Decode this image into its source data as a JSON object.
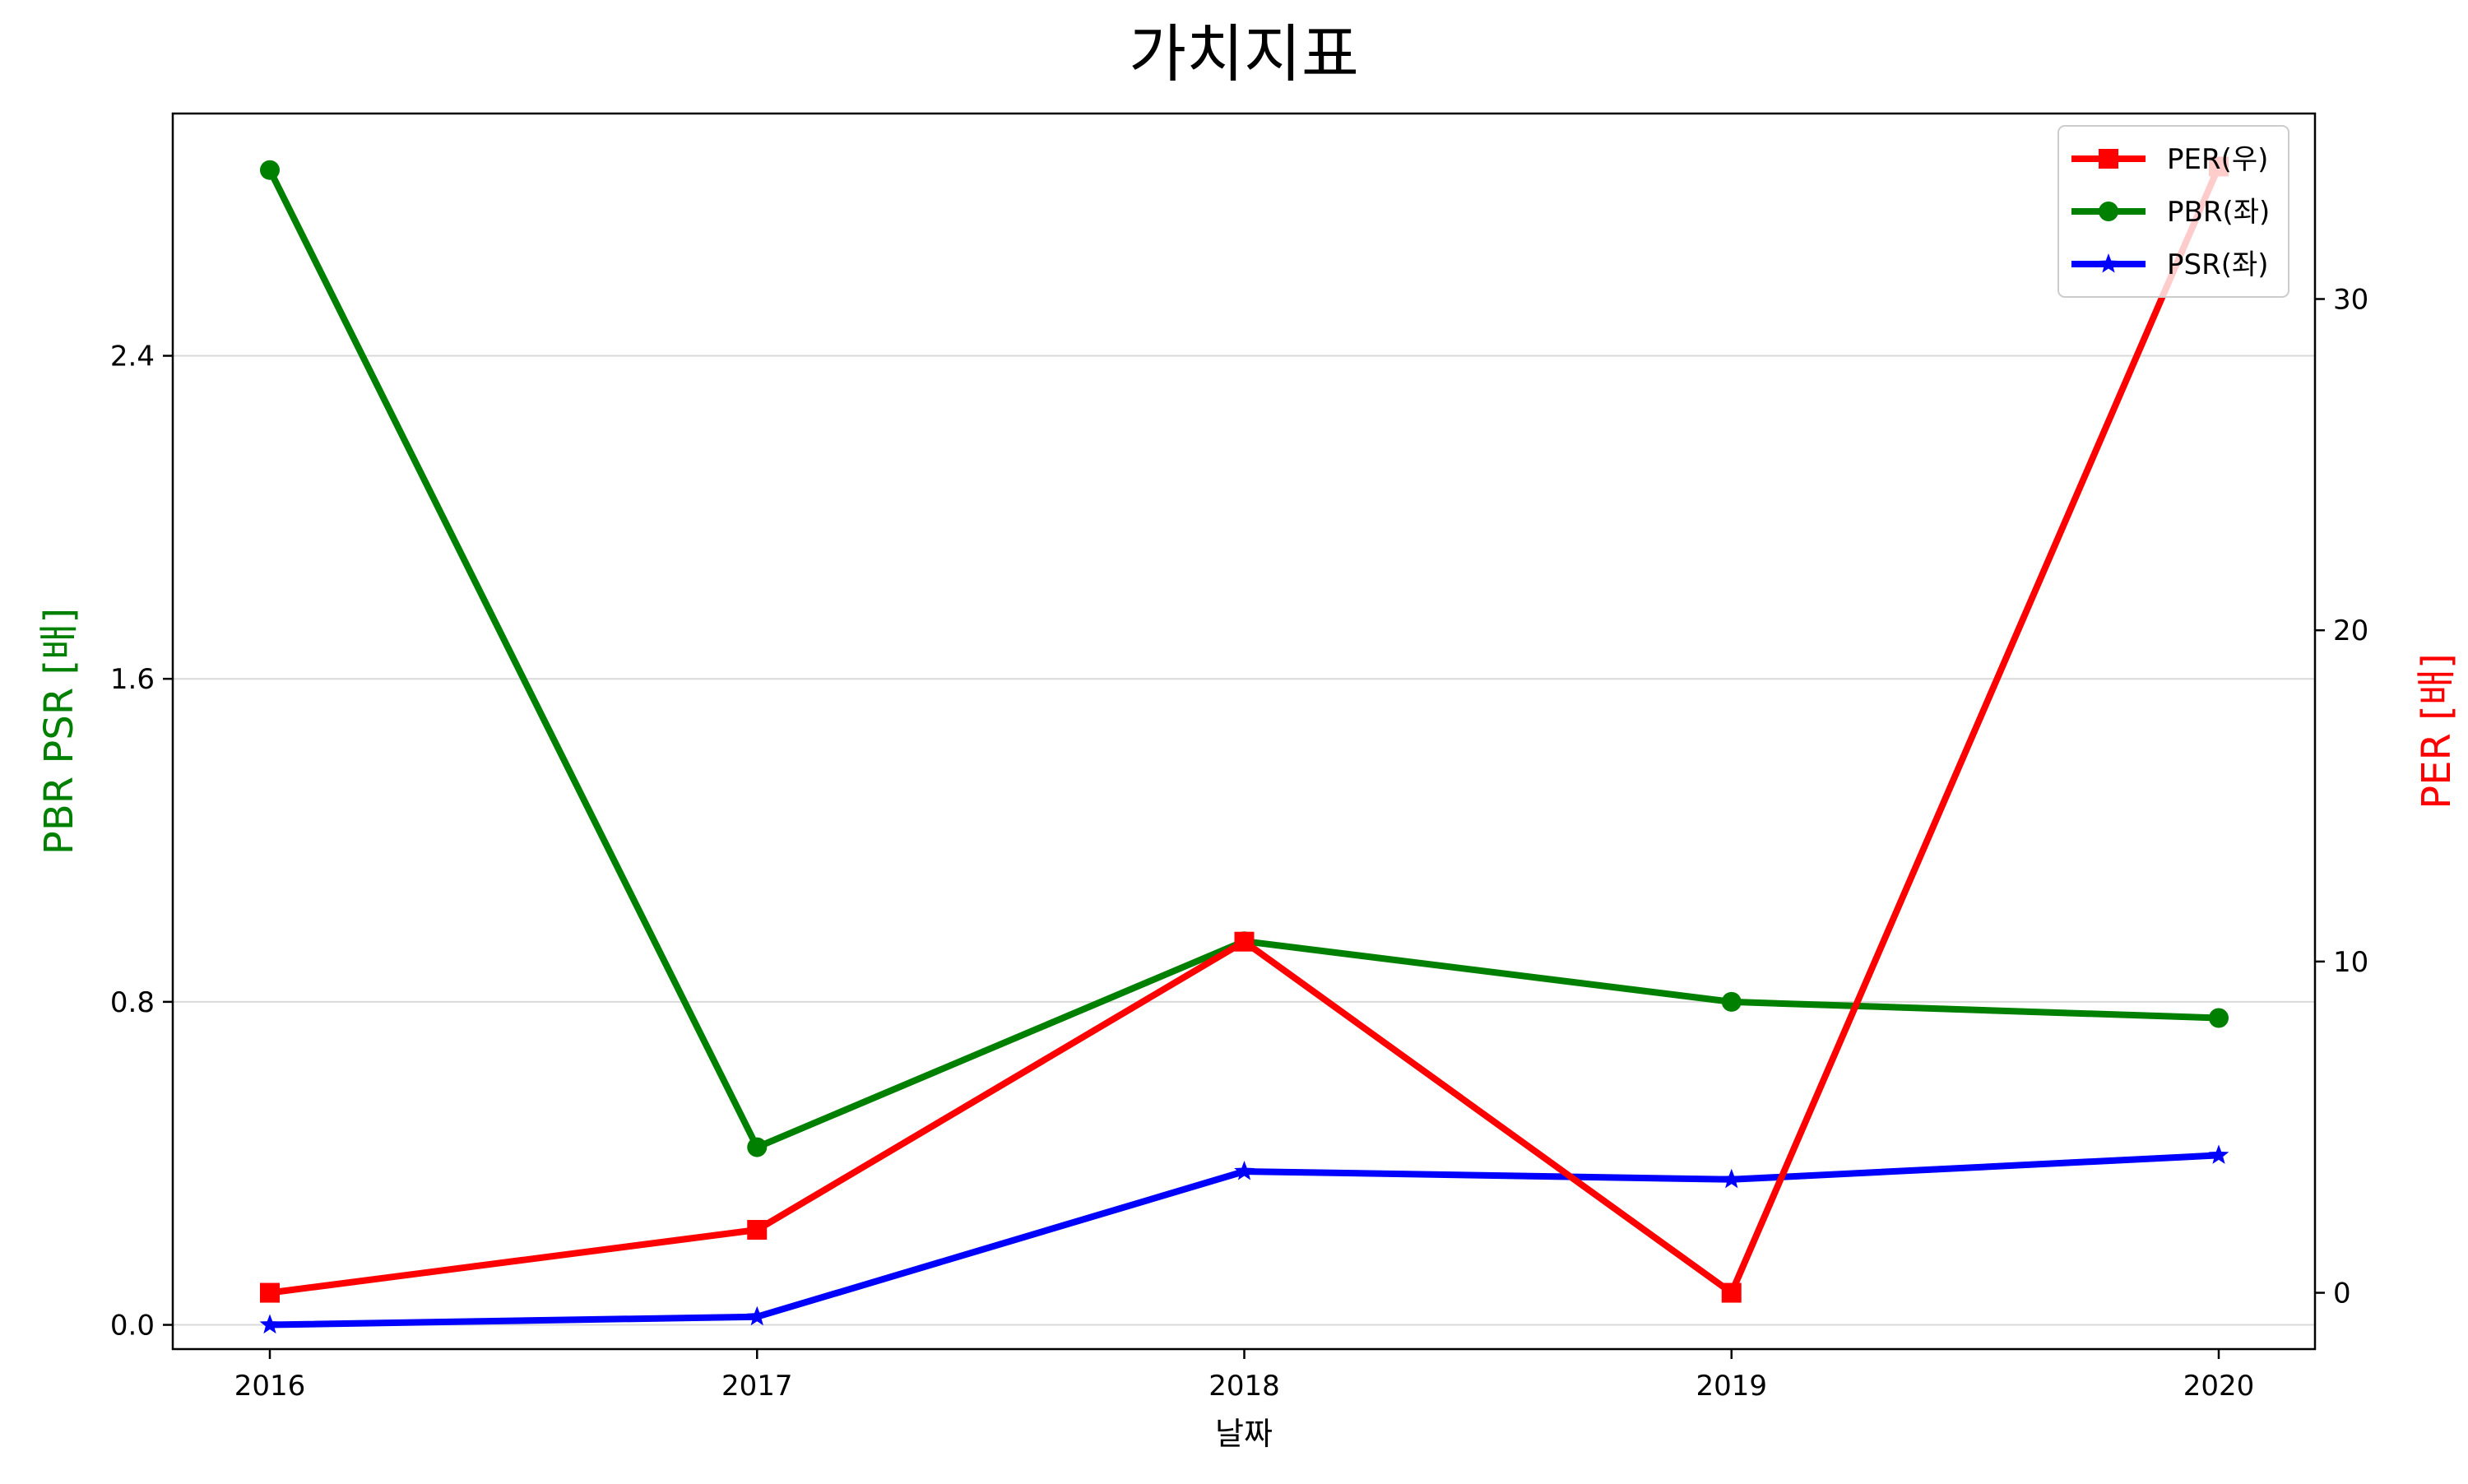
{
  "chart_data": {
    "type": "line",
    "title": "가치지표",
    "xlabel": "날짜",
    "ylabel_left": "PBR PSR [배]",
    "ylabel_right": "PER [배]",
    "x": [
      "2016",
      "2017",
      "2018",
      "2019",
      "2020"
    ],
    "ylim_left": [
      -0.06,
      3.0
    ],
    "ylim_right": [
      -1.7,
      35.6
    ],
    "yticks_left": [
      "0.0",
      "0.8",
      "1.6",
      "2.4"
    ],
    "yticks_right": [
      "0",
      "10",
      "20",
      "30"
    ],
    "grid": "horizontal",
    "legend_placement": "top-right",
    "series": [
      {
        "name": "PER(우)",
        "axis": "right",
        "color": "#ff0000",
        "marker": "square",
        "values": [
          0.0,
          1.9,
          10.6,
          0.0,
          34.0
        ]
      },
      {
        "name": "PBR(좌)",
        "axis": "left",
        "color": "#008000",
        "marker": "circle",
        "values": [
          2.86,
          0.44,
          0.95,
          0.8,
          0.76
        ]
      },
      {
        "name": "PSR(좌)",
        "axis": "left",
        "color": "#0000ff",
        "marker": "star",
        "values": [
          0.0,
          0.02,
          0.38,
          0.36,
          0.42
        ]
      }
    ]
  }
}
